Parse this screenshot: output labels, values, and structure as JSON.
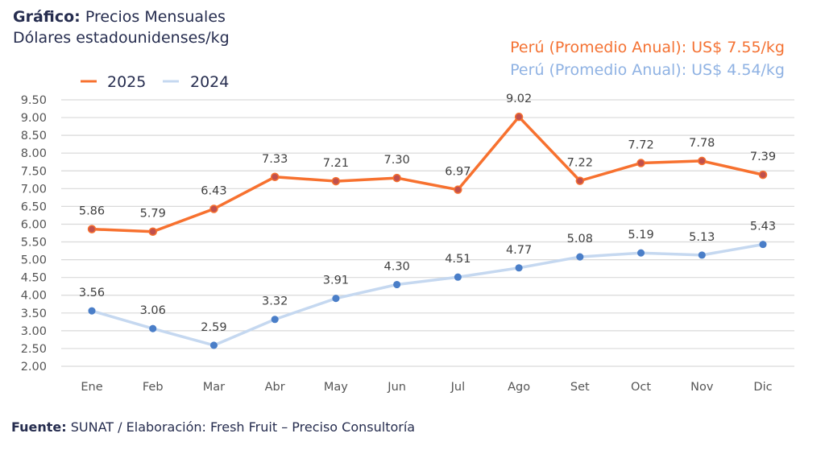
{
  "header": {
    "title_bold": "Gráfico:",
    "title_rest": " Precios Mensuales",
    "subtitle": "Dólares estadounidenses/kg",
    "avg_2025": "Perú (Promedio Anual): US$ 7.55/kg",
    "avg_2024": "Perú (Promedio Anual): US$ 4.54/kg"
  },
  "footer": {
    "label_bold": "Fuente:",
    "text": " SUNAT / Elaboración: Fresh Fruit – Preciso Consultoría"
  },
  "colors": {
    "series_2025_line": "#f7712f",
    "series_2025_marker": "#c0504d",
    "series_2024_line": "#c5d8f0",
    "series_2024_marker": "#4a7ec8",
    "grid": "#d9d9d9"
  },
  "chart_data": {
    "type": "line",
    "title": "Precios Mensuales",
    "ylabel": "Dólares estadounidenses/kg",
    "xlabel": "",
    "categories": [
      "Ene",
      "Feb",
      "Mar",
      "Abr",
      "May",
      "Jun",
      "Jul",
      "Ago",
      "Set",
      "Oct",
      "Nov",
      "Dic"
    ],
    "yticks": [
      "9.50",
      "9.00",
      "8.50",
      "8.00",
      "7.50",
      "7.00",
      "6.50",
      "6.00",
      "5.50",
      "5.00",
      "4.50",
      "4.00",
      "3.50",
      "3.00",
      "2.50",
      "2.00"
    ],
    "ylim": [
      2.0,
      9.5
    ],
    "grid": true,
    "legend_position": "top-left",
    "series": [
      {
        "name": "2025",
        "values": [
          5.86,
          5.79,
          6.43,
          7.33,
          7.21,
          7.3,
          6.97,
          9.02,
          7.22,
          7.72,
          7.78,
          7.39
        ],
        "labels": [
          "5.86",
          "5.79",
          "6.43",
          "7.33",
          "7.21",
          "7.30",
          "6.97",
          "9.02",
          "7.22",
          "7.72",
          "7.78",
          "7.39"
        ]
      },
      {
        "name": "2024",
        "values": [
          3.56,
          3.06,
          2.59,
          3.32,
          3.91,
          4.3,
          4.51,
          4.77,
          5.08,
          5.19,
          5.13,
          5.43
        ],
        "labels": [
          "3.56",
          "3.06",
          "2.59",
          "3.32",
          "3.91",
          "4.30",
          "4.51",
          "4.77",
          "5.08",
          "5.19",
          "5.13",
          "5.43"
        ]
      }
    ]
  }
}
